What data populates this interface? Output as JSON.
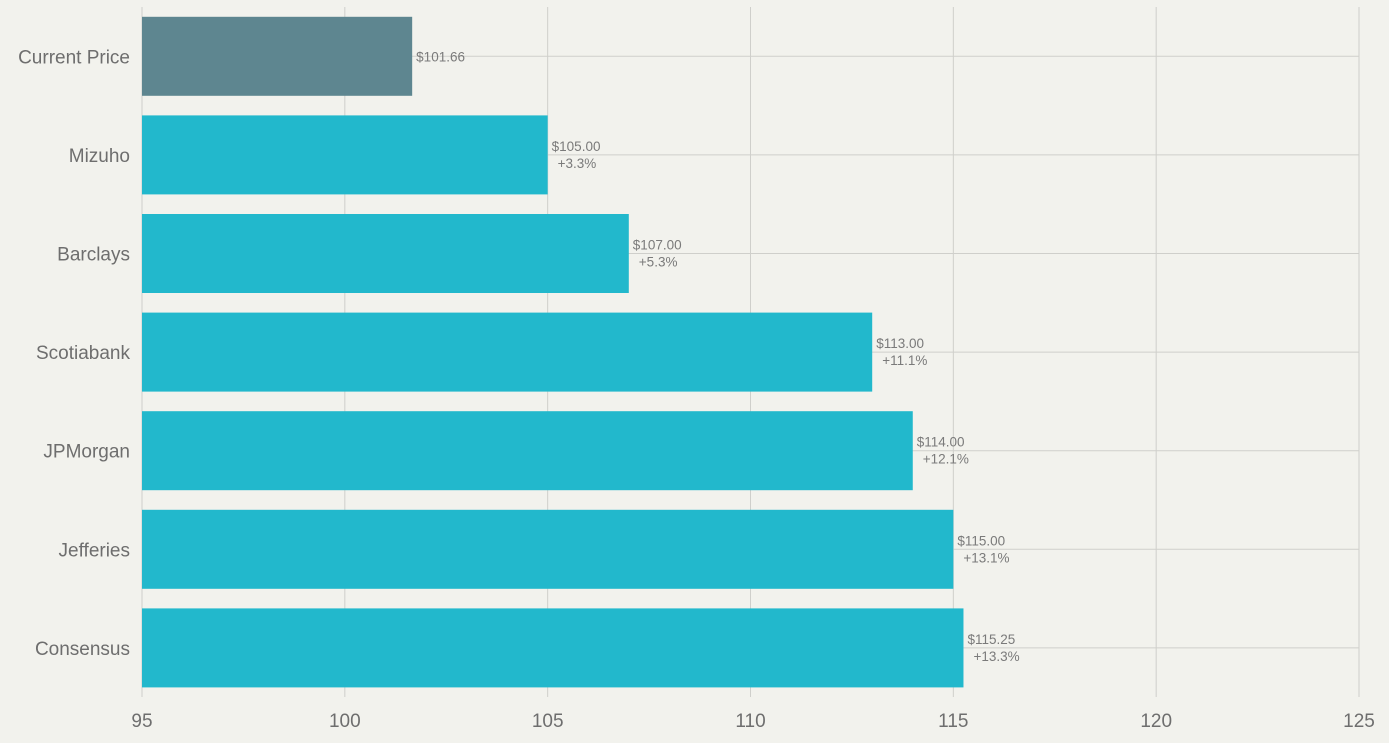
{
  "chart_data": {
    "type": "bar",
    "orientation": "horizontal",
    "title": "",
    "xlabel": "",
    "ylabel": "",
    "xlim": [
      95,
      125
    ],
    "xticks": [
      "95",
      "100",
      "105",
      "110",
      "115",
      "120",
      "125"
    ],
    "categories": [
      "Current Price",
      "Mizuho",
      "Barclays",
      "Scotiabank",
      "JPMorgan",
      "Jefferies",
      "Consensus"
    ],
    "values": [
      101.66,
      105.0,
      107.0,
      113.0,
      114.0,
      115.0,
      115.25
    ],
    "value_labels": [
      "$101.66",
      "$105.00",
      "$107.00",
      "$113.00",
      "$114.00",
      "$115.00",
      "$115.25"
    ],
    "pct_labels": [
      "",
      "+3.3%",
      "+5.3%",
      "+11.1%",
      "+12.1%",
      "+13.1%",
      "+13.3%"
    ],
    "colors": {
      "current": "#5e8690",
      "target": "#22b8cc",
      "grid": "#cfcfcb",
      "background": "#f2f2ed"
    },
    "grid": true,
    "legend": "none"
  }
}
